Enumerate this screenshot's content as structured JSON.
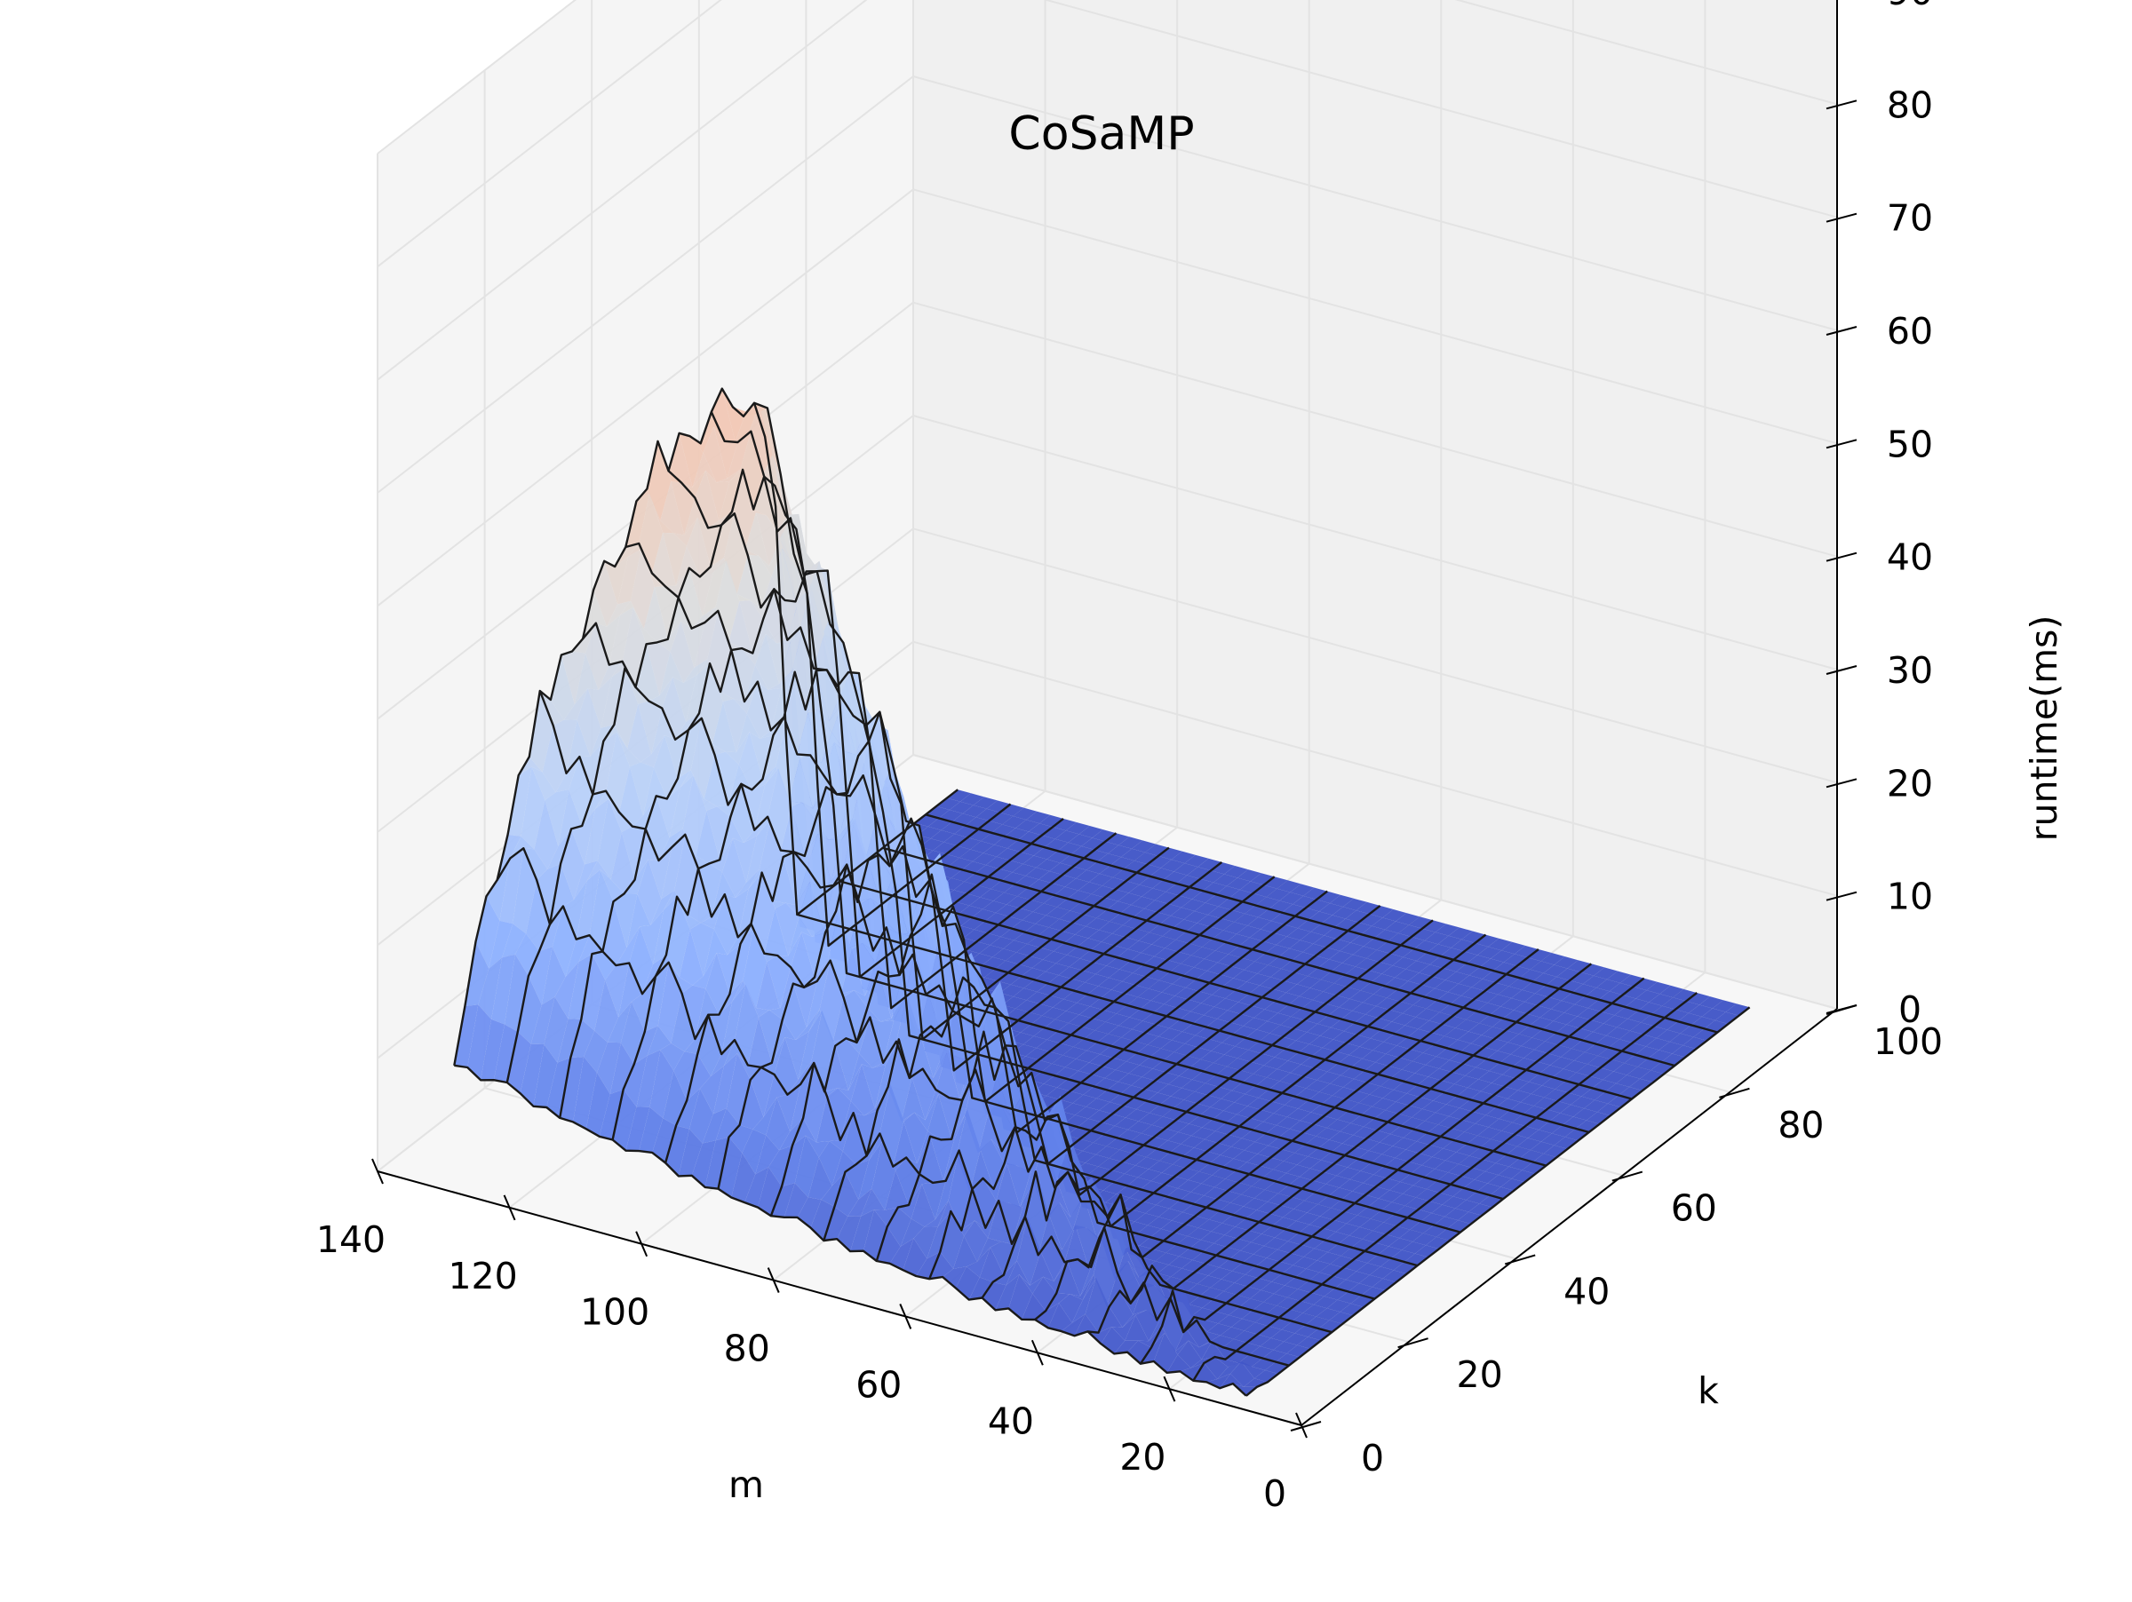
{
  "chart_data": {
    "type": "surface3d",
    "title": "CoSaMP",
    "xlabel": "m",
    "ylabel": "k",
    "zlabel": "runtime(ms)",
    "xlim": [
      0,
      140
    ],
    "ylim": [
      0,
      100
    ],
    "zlim": [
      0,
      90
    ],
    "xticks": [
      "0",
      "20",
      "40",
      "60",
      "80",
      "100",
      "120",
      "140"
    ],
    "yticks": [
      "0",
      "20",
      "40",
      "60",
      "80",
      "100"
    ],
    "zticks": [
      "0",
      "10",
      "20",
      "30",
      "40",
      "50",
      "60",
      "70",
      "80",
      "90"
    ],
    "colormap": "coolwarm",
    "colors": {
      "low": "#3b4cc0",
      "mid": "#dddddd",
      "high": "#b40426",
      "wire": "#1a1a1a"
    },
    "surface_model": {
      "description": "runtime grows with m and k; only the m > 2k region is non-zero",
      "max_runtime": 83,
      "zero_region": "m < 2k"
    },
    "grid": true
  }
}
